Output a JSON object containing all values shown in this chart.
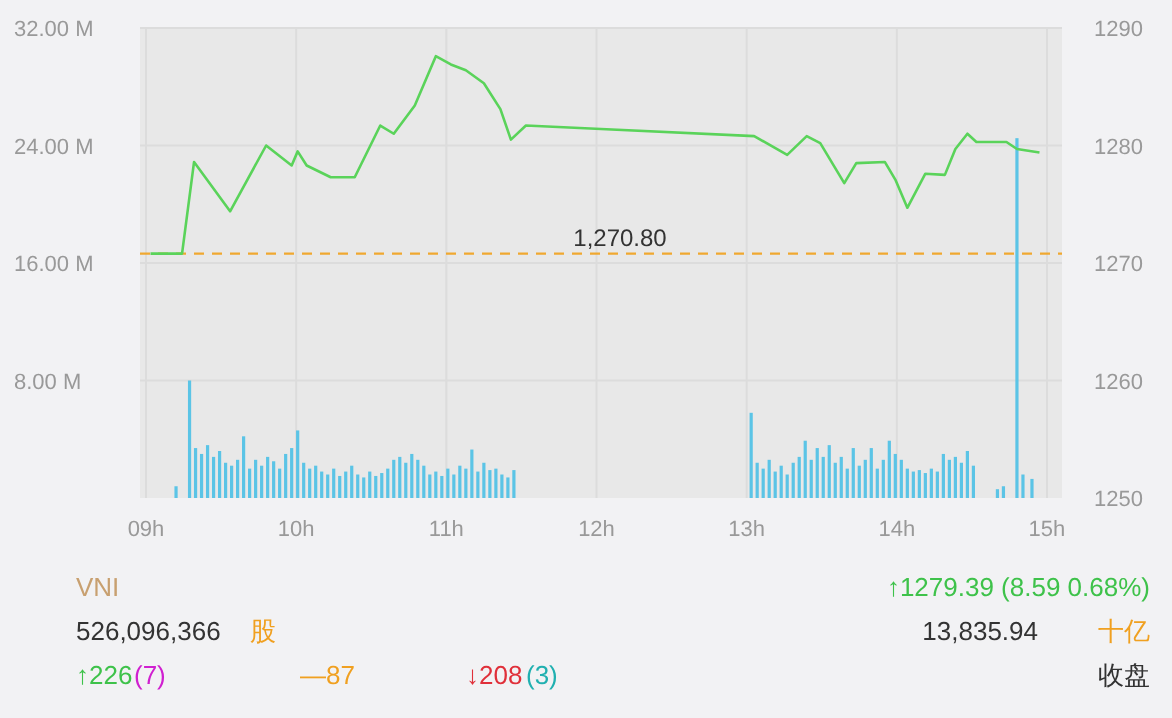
{
  "chart_data": {
    "type": "bar",
    "grid": true,
    "xlim": [
      8.96,
      15.1
    ],
    "xticks": [
      {
        "value": 9,
        "label": "09h"
      },
      {
        "value": 10,
        "label": "10h"
      },
      {
        "value": 11,
        "label": "11h"
      },
      {
        "value": 12,
        "label": "12h"
      },
      {
        "value": 13,
        "label": "13h"
      },
      {
        "value": 14,
        "label": "14h"
      },
      {
        "value": 15,
        "label": "15h"
      }
    ],
    "ylim": [
      0,
      32
    ],
    "yticks": [
      {
        "value": 8,
        "label": "8.00 M"
      },
      {
        "value": 16,
        "label": "16.00 M"
      },
      {
        "value": 24,
        "label": "24.00 M"
      },
      {
        "value": 32,
        "label": "32.00 M"
      }
    ],
    "y2lim": [
      1250,
      1290
    ],
    "y2ticks": [
      1250,
      1260,
      1270,
      1280,
      1290
    ],
    "series": [
      {
        "axis": "y",
        "color": "#5bc4e6",
        "x": [
          9.2,
          9.29,
          9.33,
          9.37,
          9.41,
          9.45,
          9.49,
          9.53,
          9.57,
          9.61,
          9.65,
          9.69,
          9.73,
          9.77,
          9.81,
          9.85,
          9.89,
          9.93,
          9.97,
          10.01,
          10.05,
          10.09,
          10.13,
          10.17,
          10.21,
          10.25,
          10.29,
          10.33,
          10.37,
          10.41,
          10.45,
          10.49,
          10.53,
          10.57,
          10.61,
          10.65,
          10.69,
          10.73,
          10.77,
          10.81,
          10.85,
          10.89,
          10.93,
          10.97,
          11.01,
          11.05,
          11.09,
          11.13,
          11.17,
          11.21,
          11.25,
          11.29,
          11.33,
          11.37,
          11.41,
          11.45,
          13.03,
          13.07,
          13.11,
          13.15,
          13.19,
          13.23,
          13.27,
          13.31,
          13.35,
          13.39,
          13.43,
          13.47,
          13.51,
          13.55,
          13.59,
          13.63,
          13.67,
          13.71,
          13.75,
          13.79,
          13.83,
          13.87,
          13.91,
          13.95,
          13.99,
          14.03,
          14.07,
          14.11,
          14.15,
          14.19,
          14.23,
          14.27,
          14.31,
          14.35,
          14.39,
          14.43,
          14.47,
          14.51,
          14.67,
          14.71,
          14.8,
          14.84,
          14.9
        ],
        "values": [
          0.8,
          8.0,
          3.4,
          3.0,
          3.6,
          2.8,
          3.2,
          2.4,
          2.2,
          2.6,
          4.2,
          2.0,
          2.6,
          2.2,
          2.8,
          2.5,
          2.0,
          3.0,
          3.4,
          4.6,
          2.4,
          2.0,
          2.2,
          1.8,
          1.6,
          2.0,
          1.5,
          1.8,
          2.2,
          1.6,
          1.4,
          1.8,
          1.5,
          1.7,
          2.0,
          2.6,
          2.8,
          2.4,
          3.0,
          2.6,
          2.2,
          1.6,
          1.8,
          1.5,
          2.0,
          1.6,
          2.2,
          2.0,
          3.3,
          1.8,
          2.4,
          1.9,
          2.0,
          1.6,
          1.4,
          1.9,
          5.8,
          2.4,
          2.0,
          2.6,
          1.8,
          2.2,
          1.6,
          2.4,
          2.8,
          3.9,
          2.6,
          3.4,
          2.8,
          3.6,
          2.4,
          2.8,
          2.0,
          3.4,
          2.2,
          2.6,
          3.4,
          2.0,
          2.6,
          3.9,
          3.0,
          2.6,
          2.0,
          1.8,
          1.9,
          1.7,
          2.0,
          1.8,
          3.0,
          2.6,
          2.8,
          2.4,
          3.2,
          2.2,
          0.6,
          0.8,
          24.5,
          1.6,
          1.3
        ]
      },
      {
        "type": "line",
        "axis": "y2",
        "color": "#5ad35a",
        "x": [
          9.03,
          9.24,
          9.32,
          9.56,
          9.8,
          9.97,
          10.01,
          10.07,
          10.23,
          10.39,
          10.56,
          10.65,
          10.79,
          10.93,
          11.03,
          11.13,
          11.25,
          11.36,
          11.43,
          11.53,
          12.03,
          13.05,
          13.27,
          13.4,
          13.49,
          13.65,
          13.73,
          13.92,
          13.99,
          14.07,
          14.19,
          14.32,
          14.39,
          14.47,
          14.53,
          14.73,
          14.8,
          14.95
        ],
        "values": [
          1270.8,
          1270.8,
          1278.6,
          1274.4,
          1280.0,
          1278.3,
          1279.5,
          1278.3,
          1277.3,
          1277.3,
          1281.7,
          1281.0,
          1283.4,
          1287.6,
          1286.9,
          1286.4,
          1285.3,
          1283.1,
          1280.5,
          1281.7,
          1281.4,
          1280.8,
          1279.2,
          1280.8,
          1280.2,
          1276.8,
          1278.5,
          1278.6,
          1277.1,
          1274.7,
          1277.6,
          1277.5,
          1279.7,
          1281.0,
          1280.3,
          1280.3,
          1279.7,
          1279.4
        ]
      }
    ],
    "ref_lines": [
      {
        "axis": "y2",
        "value": 1270.8,
        "label": "1,270.80",
        "color": "#f0a830",
        "line_style": "dashed"
      }
    ],
    "annotations": [
      "VNI",
      "↑1279.39 (8.59 0.68%)",
      "526,096,366",
      "股",
      "13,835.94",
      "十亿",
      "↑226",
      "(7)",
      "—87",
      "↓208",
      "(3)",
      "收盘"
    ]
  }
}
